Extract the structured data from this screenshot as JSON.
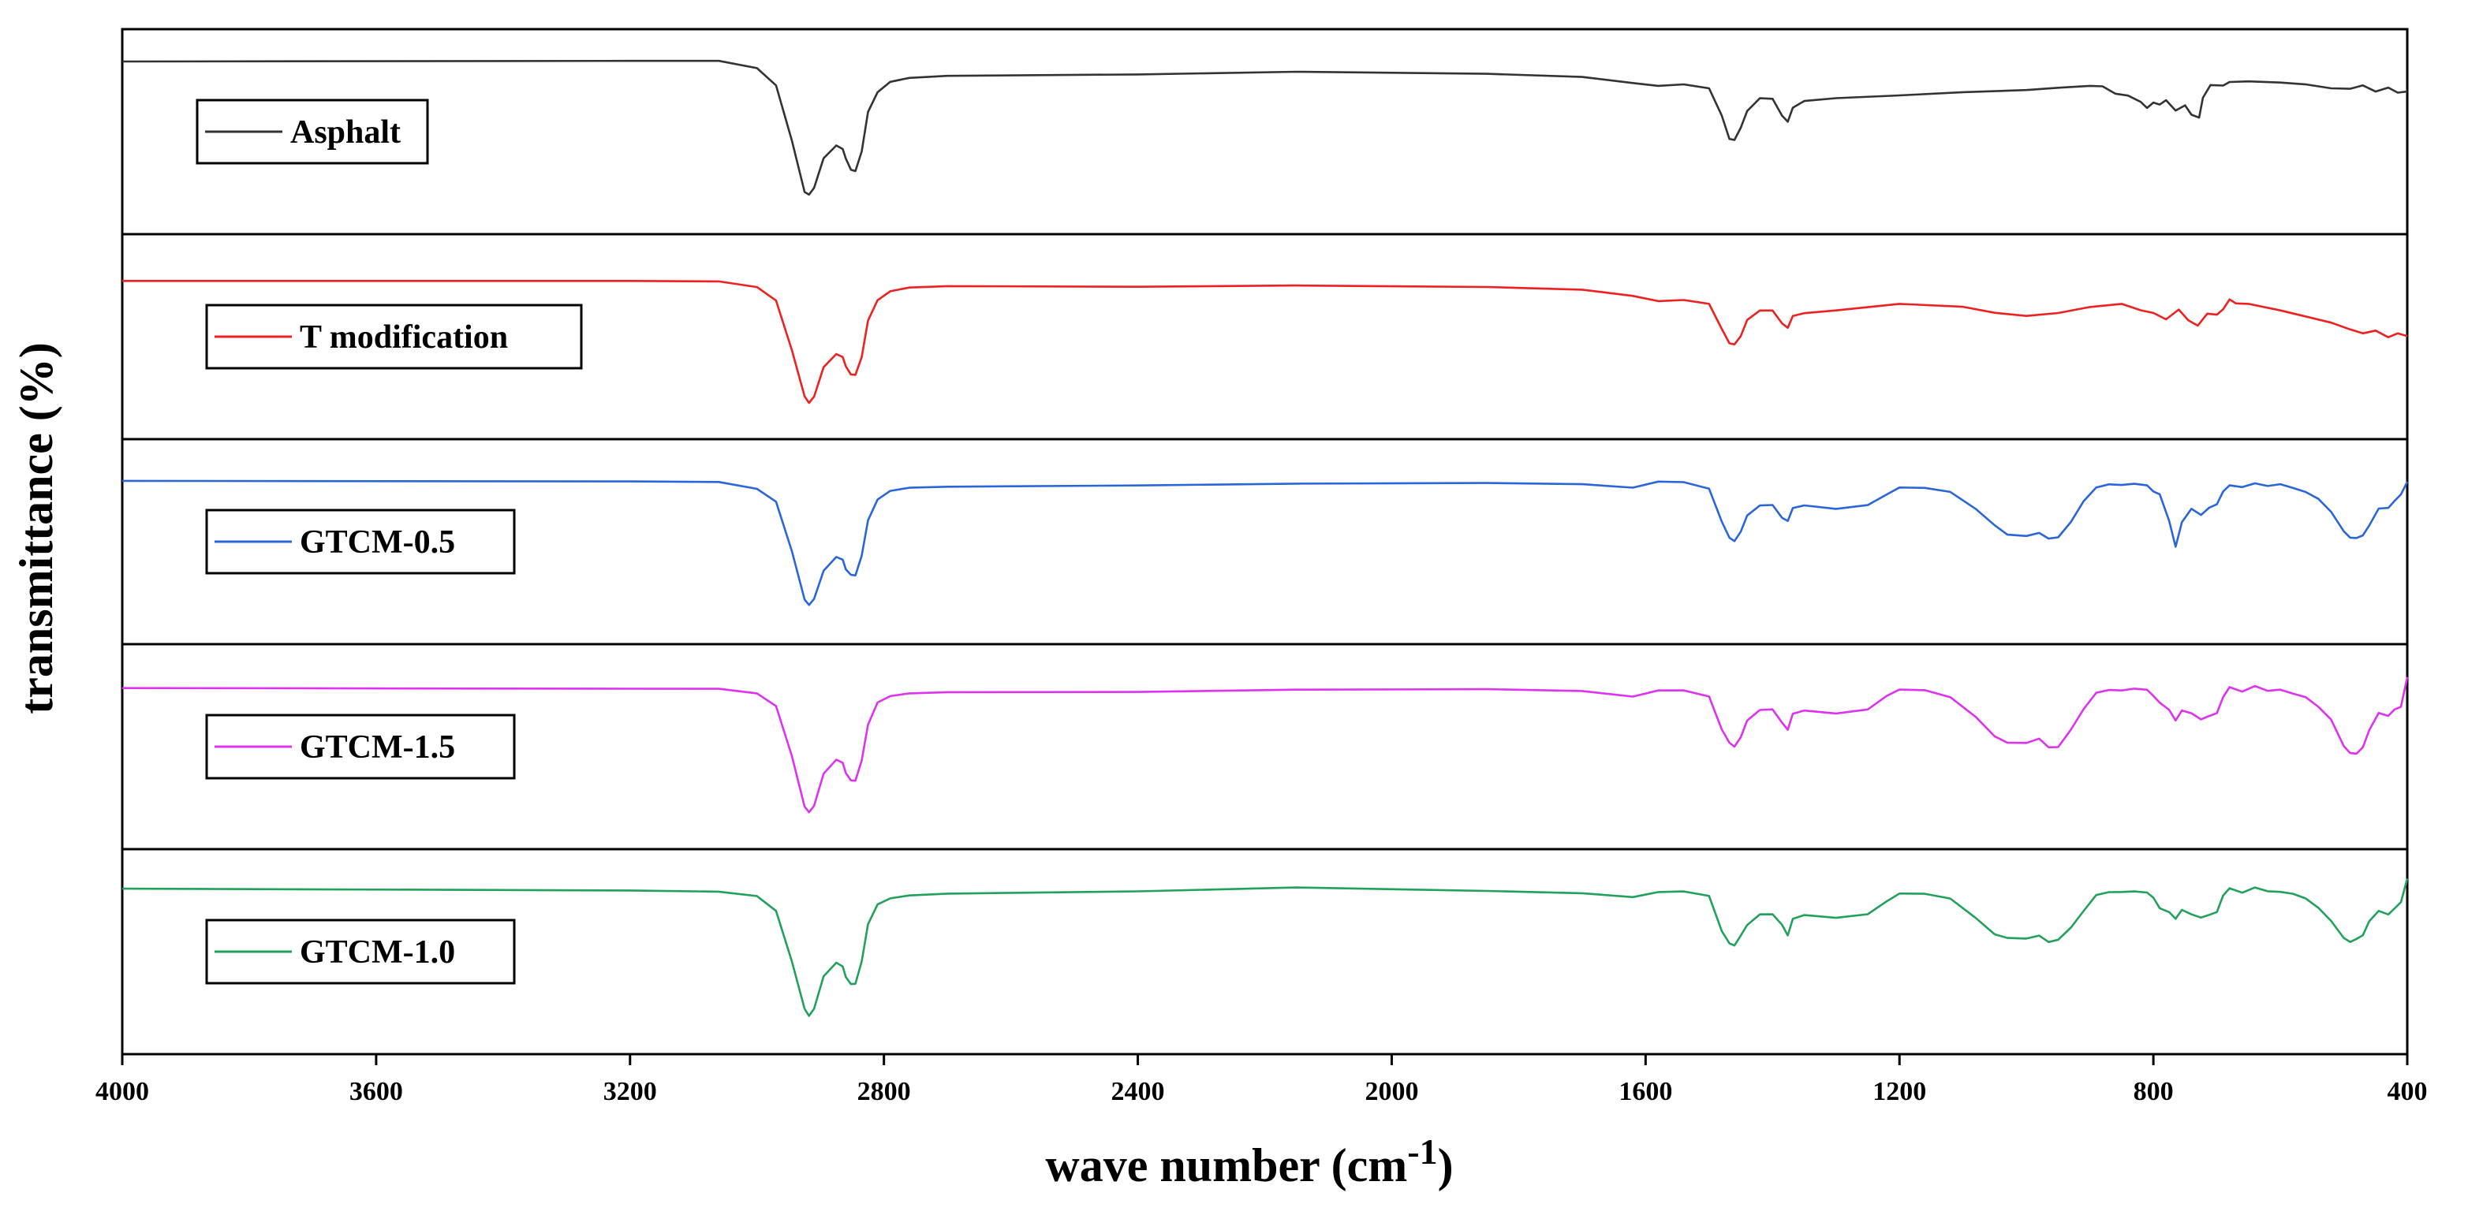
{
  "chart_data": {
    "type": "line",
    "layout": "stacked-panels",
    "xlabel": "wave number (cm",
    "xlabel_superscript": "-1",
    "xlabel_suffix": ")",
    "ylabel": "transmittance (%)",
    "xlim": [
      4000,
      400
    ],
    "x_reversed": true,
    "xticks": [
      4000,
      3600,
      3200,
      2800,
      2400,
      2000,
      1600,
      1200,
      800,
      400
    ],
    "xtick_labels": [
      "4000",
      "3600",
      "3200",
      "2800",
      "2400",
      "2000",
      "1600",
      "1200",
      "800",
      "400"
    ],
    "ylim": [
      0,
      1
    ],
    "grid": false,
    "series": [
      {
        "name": "Asphalt",
        "color": "#333333",
        "x": [
          4000,
          3200,
          3060,
          3000,
          2970,
          2945,
          2925,
          2918,
          2910,
          2895,
          2875,
          2865,
          2860,
          2852,
          2845,
          2835,
          2825,
          2810,
          2790,
          2760,
          2700,
          2400,
          2150,
          1850,
          1700,
          1620,
          1580,
          1540,
          1500,
          1480,
          1468,
          1460,
          1450,
          1440,
          1420,
          1400,
          1385,
          1376,
          1368,
          1350,
          1300,
          1200,
          1100,
          1000,
          950,
          900,
          880,
          860,
          840,
          820,
          810,
          800,
          790,
          780,
          765,
          750,
          740,
          728,
          722,
          710,
          690,
          680,
          650,
          600,
          560,
          520,
          490,
          470,
          450,
          430,
          415,
          400
        ],
        "y": [
          0.92,
          0.92,
          0.92,
          0.88,
          0.78,
          0.45,
          0.14,
          0.12,
          0.16,
          0.34,
          0.42,
          0.4,
          0.34,
          0.27,
          0.26,
          0.38,
          0.62,
          0.74,
          0.8,
          0.82,
          0.83,
          0.84,
          0.86,
          0.85,
          0.83,
          0.79,
          0.77,
          0.78,
          0.76,
          0.6,
          0.46,
          0.45,
          0.52,
          0.62,
          0.7,
          0.7,
          0.6,
          0.56,
          0.64,
          0.68,
          0.7,
          0.72,
          0.74,
          0.75,
          0.76,
          0.77,
          0.77,
          0.73,
          0.72,
          0.68,
          0.64,
          0.67,
          0.66,
          0.69,
          0.63,
          0.66,
          0.6,
          0.58,
          0.7,
          0.78,
          0.78,
          0.8,
          0.8,
          0.79,
          0.78,
          0.76,
          0.76,
          0.78,
          0.74,
          0.76,
          0.73,
          0.74
        ],
        "label_box_index": 0
      },
      {
        "name": "T modification",
        "color": "#ee2020",
        "x": [
          4000,
          3200,
          3060,
          3000,
          2970,
          2945,
          2925,
          2918,
          2910,
          2895,
          2875,
          2865,
          2860,
          2852,
          2845,
          2835,
          2825,
          2810,
          2790,
          2760,
          2700,
          2400,
          2150,
          1850,
          1700,
          1620,
          1580,
          1540,
          1500,
          1480,
          1468,
          1460,
          1450,
          1440,
          1420,
          1400,
          1385,
          1376,
          1368,
          1350,
          1300,
          1200,
          1100,
          1050,
          1000,
          950,
          900,
          850,
          820,
          800,
          780,
          760,
          745,
          730,
          715,
          700,
          690,
          680,
          670,
          650,
          600,
          560,
          520,
          490,
          470,
          450,
          430,
          415,
          400
        ],
        "y": [
          0.83,
          0.83,
          0.83,
          0.8,
          0.72,
          0.42,
          0.14,
          0.1,
          0.14,
          0.32,
          0.4,
          0.38,
          0.32,
          0.27,
          0.27,
          0.38,
          0.6,
          0.72,
          0.77,
          0.79,
          0.8,
          0.8,
          0.81,
          0.8,
          0.78,
          0.74,
          0.71,
          0.72,
          0.7,
          0.55,
          0.46,
          0.45,
          0.5,
          0.6,
          0.66,
          0.66,
          0.58,
          0.55,
          0.62,
          0.64,
          0.66,
          0.7,
          0.68,
          0.64,
          0.62,
          0.64,
          0.68,
          0.7,
          0.66,
          0.64,
          0.6,
          0.66,
          0.6,
          0.57,
          0.64,
          0.63,
          0.66,
          0.72,
          0.7,
          0.7,
          0.66,
          0.62,
          0.58,
          0.54,
          0.52,
          0.54,
          0.5,
          0.52,
          0.5
        ],
        "label_box_index": 1
      },
      {
        "name": "GTCM-0.5",
        "color": "#2b66d9",
        "x": [
          4000,
          3200,
          3060,
          3000,
          2970,
          2945,
          2925,
          2918,
          2910,
          2895,
          2875,
          2865,
          2860,
          2852,
          2845,
          2835,
          2825,
          2810,
          2790,
          2760,
          2700,
          2400,
          2150,
          1850,
          1700,
          1620,
          1580,
          1540,
          1500,
          1480,
          1468,
          1460,
          1450,
          1440,
          1420,
          1400,
          1385,
          1376,
          1368,
          1350,
          1300,
          1250,
          1220,
          1200,
          1160,
          1120,
          1080,
          1050,
          1030,
          1000,
          980,
          965,
          950,
          930,
          910,
          890,
          870,
          850,
          830,
          810,
          800,
          790,
          775,
          765,
          755,
          740,
          725,
          712,
          700,
          690,
          680,
          660,
          640,
          620,
          600,
          580,
          560,
          540,
          520,
          500,
          490,
          480,
          470,
          460,
          445,
          430,
          420,
          410,
          400
        ],
        "y": [
          0.86,
          0.86,
          0.86,
          0.82,
          0.74,
          0.44,
          0.15,
          0.12,
          0.16,
          0.33,
          0.41,
          0.39,
          0.33,
          0.3,
          0.3,
          0.42,
          0.63,
          0.75,
          0.8,
          0.82,
          0.83,
          0.84,
          0.85,
          0.85,
          0.84,
          0.82,
          0.86,
          0.86,
          0.82,
          0.62,
          0.52,
          0.5,
          0.56,
          0.66,
          0.72,
          0.72,
          0.64,
          0.62,
          0.7,
          0.72,
          0.7,
          0.72,
          0.78,
          0.82,
          0.82,
          0.8,
          0.7,
          0.6,
          0.54,
          0.53,
          0.55,
          0.52,
          0.53,
          0.62,
          0.74,
          0.82,
          0.84,
          0.84,
          0.85,
          0.84,
          0.8,
          0.78,
          0.62,
          0.47,
          0.62,
          0.7,
          0.66,
          0.7,
          0.72,
          0.8,
          0.84,
          0.83,
          0.85,
          0.83,
          0.84,
          0.82,
          0.8,
          0.76,
          0.68,
          0.56,
          0.52,
          0.52,
          0.54,
          0.6,
          0.7,
          0.7,
          0.74,
          0.78,
          0.86
        ],
        "label_box_index": 2
      },
      {
        "name": "GTCM-1.5",
        "color": "#dd33ee",
        "x": [
          4000,
          3200,
          3060,
          3000,
          2970,
          2945,
          2925,
          2918,
          2910,
          2895,
          2875,
          2865,
          2860,
          2852,
          2845,
          2835,
          2825,
          2810,
          2790,
          2760,
          2700,
          2400,
          2150,
          1850,
          1700,
          1620,
          1580,
          1540,
          1500,
          1480,
          1468,
          1460,
          1450,
          1440,
          1420,
          1400,
          1385,
          1376,
          1368,
          1350,
          1300,
          1250,
          1220,
          1200,
          1160,
          1120,
          1080,
          1050,
          1030,
          1000,
          980,
          965,
          950,
          930,
          910,
          890,
          870,
          850,
          830,
          810,
          800,
          790,
          775,
          765,
          755,
          740,
          725,
          712,
          700,
          690,
          680,
          660,
          640,
          620,
          600,
          580,
          560,
          540,
          520,
          500,
          490,
          480,
          470,
          460,
          445,
          430,
          420,
          410,
          400
        ],
        "y": [
          0.85,
          0.85,
          0.85,
          0.82,
          0.74,
          0.44,
          0.14,
          0.11,
          0.15,
          0.34,
          0.42,
          0.4,
          0.34,
          0.3,
          0.3,
          0.42,
          0.63,
          0.76,
          0.8,
          0.82,
          0.83,
          0.83,
          0.84,
          0.84,
          0.83,
          0.8,
          0.84,
          0.84,
          0.8,
          0.6,
          0.52,
          0.5,
          0.56,
          0.66,
          0.72,
          0.72,
          0.64,
          0.6,
          0.7,
          0.72,
          0.7,
          0.72,
          0.8,
          0.84,
          0.84,
          0.8,
          0.68,
          0.56,
          0.52,
          0.52,
          0.55,
          0.5,
          0.5,
          0.6,
          0.72,
          0.82,
          0.84,
          0.84,
          0.85,
          0.84,
          0.8,
          0.76,
          0.72,
          0.66,
          0.72,
          0.7,
          0.66,
          0.68,
          0.7,
          0.8,
          0.86,
          0.83,
          0.86,
          0.83,
          0.84,
          0.82,
          0.8,
          0.74,
          0.66,
          0.5,
          0.46,
          0.46,
          0.5,
          0.6,
          0.7,
          0.68,
          0.72,
          0.74,
          0.92
        ],
        "label_box_index": 3
      },
      {
        "name": "GTCM-1.0",
        "color": "#22a15a",
        "x": [
          4000,
          3200,
          3060,
          3000,
          2970,
          2945,
          2925,
          2918,
          2910,
          2895,
          2875,
          2865,
          2860,
          2852,
          2845,
          2835,
          2825,
          2810,
          2790,
          2760,
          2700,
          2400,
          2150,
          1850,
          1700,
          1620,
          1580,
          1540,
          1500,
          1480,
          1468,
          1460,
          1450,
          1440,
          1420,
          1400,
          1385,
          1376,
          1368,
          1350,
          1300,
          1250,
          1220,
          1200,
          1160,
          1120,
          1080,
          1050,
          1030,
          1000,
          980,
          965,
          950,
          930,
          910,
          890,
          870,
          850,
          830,
          810,
          800,
          790,
          775,
          765,
          755,
          740,
          725,
          712,
          700,
          690,
          680,
          660,
          640,
          620,
          600,
          580,
          560,
          540,
          520,
          500,
          490,
          480,
          470,
          460,
          445,
          430,
          420,
          410,
          400
        ],
        "y": [
          0.88,
          0.87,
          0.86,
          0.83,
          0.74,
          0.44,
          0.16,
          0.12,
          0.16,
          0.35,
          0.43,
          0.41,
          0.35,
          0.31,
          0.31,
          0.44,
          0.66,
          0.78,
          0.82,
          0.84,
          0.85,
          0.86,
          0.88,
          0.86,
          0.85,
          0.83,
          0.86,
          0.86,
          0.83,
          0.62,
          0.55,
          0.54,
          0.6,
          0.66,
          0.72,
          0.72,
          0.66,
          0.6,
          0.7,
          0.72,
          0.7,
          0.72,
          0.8,
          0.85,
          0.85,
          0.82,
          0.7,
          0.6,
          0.58,
          0.58,
          0.6,
          0.56,
          0.57,
          0.64,
          0.74,
          0.84,
          0.86,
          0.86,
          0.86,
          0.85,
          0.82,
          0.76,
          0.74,
          0.7,
          0.75,
          0.72,
          0.7,
          0.72,
          0.74,
          0.84,
          0.88,
          0.85,
          0.88,
          0.86,
          0.86,
          0.85,
          0.82,
          0.76,
          0.68,
          0.58,
          0.56,
          0.58,
          0.6,
          0.68,
          0.74,
          0.72,
          0.76,
          0.8,
          0.94
        ],
        "label_box_index": 4
      }
    ]
  }
}
